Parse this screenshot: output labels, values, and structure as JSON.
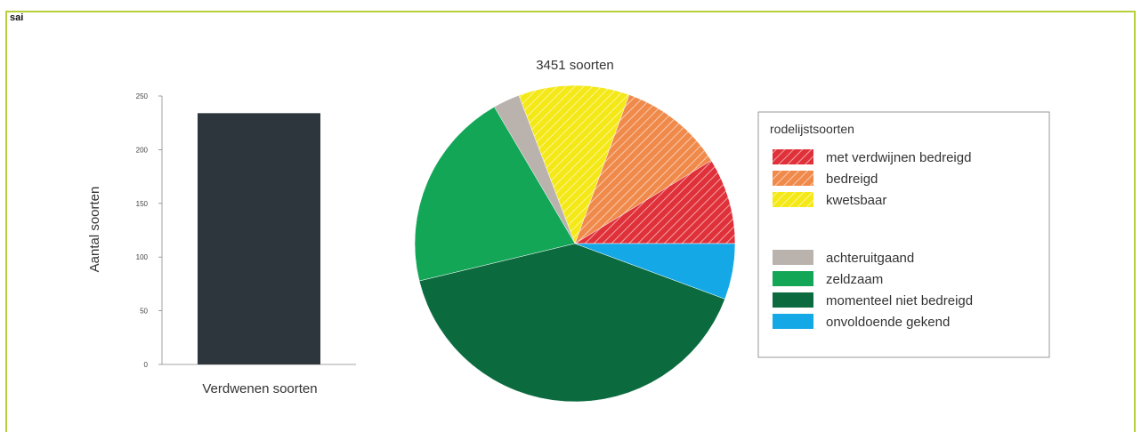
{
  "header": {
    "label": "sai"
  },
  "chart_data": [
    {
      "type": "bar",
      "categories": [
        "Verdwenen soorten"
      ],
      "values": [
        234
      ],
      "title": "",
      "xlabel": "",
      "ylabel": "Aantal soorten",
      "ylim": [
        0,
        250
      ],
      "yticks": [
        0,
        50,
        100,
        150,
        200,
        250
      ],
      "color": "#2e363d",
      "grid": false
    },
    {
      "type": "pie",
      "title": "3451 soorten",
      "legend_title": "rodelijstsoorten",
      "legend_position": "right",
      "slices": [
        {
          "label": "met verdwijnen bedreigd",
          "value": 8.8,
          "color": "#e0313a",
          "hatch": true,
          "legend_gap_after": false
        },
        {
          "label": "bedreigd",
          "value": 10.7,
          "color": "#f08a4b",
          "hatch": true,
          "legend_gap_after": false
        },
        {
          "label": "kwetsbaar",
          "value": 11.2,
          "color": "#f4e816",
          "hatch": true,
          "legend_gap_after": true
        },
        {
          "label": "achteruitgaand",
          "value": 2.7,
          "color": "#b9b2ad",
          "hatch": false,
          "legend_gap_after": false
        },
        {
          "label": "zeldzaam",
          "value": 20.4,
          "color": "#12a656",
          "hatch": false,
          "legend_gap_after": false
        },
        {
          "label": "momenteel niet bedreigd",
          "value": 40.5,
          "color": "#0b6b3e",
          "hatch": false,
          "legend_gap_after": false
        },
        {
          "label": "onvoldoende gekend",
          "value": 5.7,
          "color": "#14a8e6",
          "hatch": false,
          "legend_gap_after": false
        }
      ]
    }
  ]
}
